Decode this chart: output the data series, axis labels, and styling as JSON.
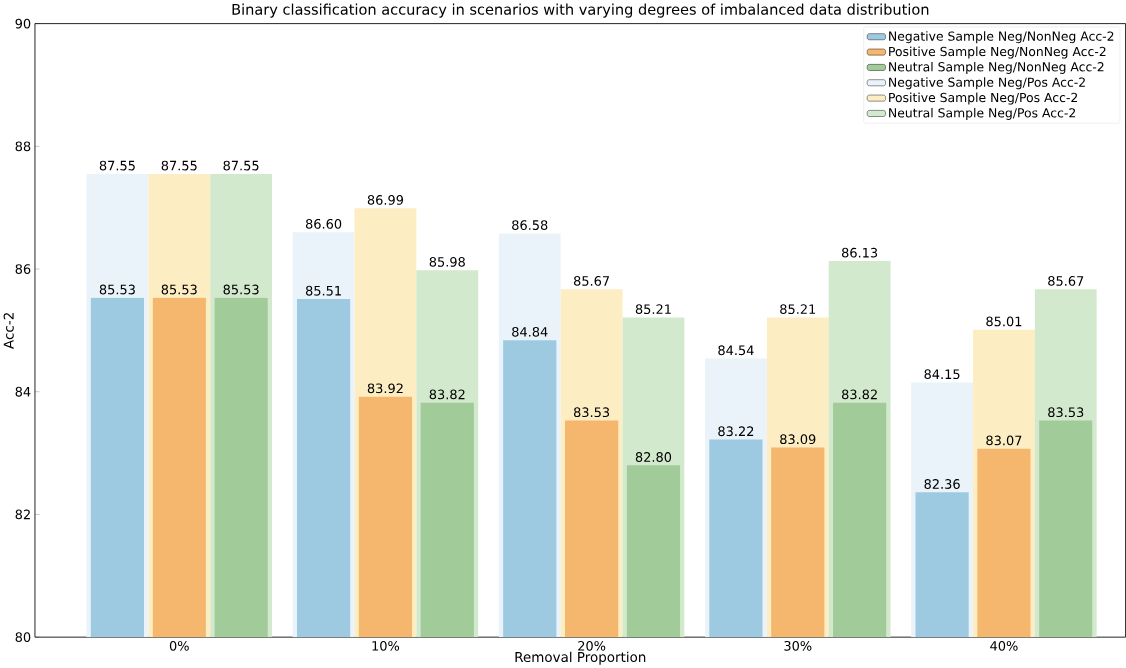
{
  "chart_data": {
    "type": "bar",
    "title": "Binary classification accuracy in scenarios with varying degrees of imbalanced data distribution",
    "xlabel": "Removal Proportion",
    "ylabel": "Acc-2",
    "categories": [
      "0%",
      "10%",
      "20%",
      "30%",
      "40%"
    ],
    "series": [
      {
        "name": "Negative Sample Neg/NonNeg Acc-2",
        "color": "#9ecae1",
        "values": [
          85.53,
          85.51,
          84.84,
          83.22,
          82.36
        ],
        "value_labels": [
          "85.53",
          "85.51",
          "84.84",
          "83.22",
          "82.36"
        ]
      },
      {
        "name": "Positive Sample Neg/NonNeg Acc-2",
        "color": "#f5b66e",
        "values": [
          85.53,
          83.92,
          83.53,
          83.09,
          83.07
        ],
        "value_labels": [
          "85.53",
          "83.92",
          "83.53",
          "83.09",
          "83.07"
        ]
      },
      {
        "name": "Neutral Sample Neg/NonNeg Acc-2",
        "color": "#a1cb98",
        "values": [
          85.53,
          83.82,
          82.8,
          83.82,
          83.53
        ],
        "value_labels": [
          "85.53",
          "83.82",
          "82.80",
          "83.82",
          "83.53"
        ]
      },
      {
        "name": "Negative Sample Neg/Pos Acc-2",
        "color": "#eaf3f9",
        "values": [
          87.55,
          86.6,
          86.58,
          84.54,
          84.15
        ],
        "value_labels": [
          "87.55",
          "86.60",
          "86.58",
          "84.54",
          "84.15"
        ]
      },
      {
        "name": "Positive Sample Neg/Pos Acc-2",
        "color": "#fcedc2",
        "values": [
          87.55,
          86.99,
          85.67,
          85.21,
          85.01
        ],
        "value_labels": [
          "87.55",
          "86.99",
          "85.67",
          "85.21",
          "85.01"
        ]
      },
      {
        "name": "Neutral Sample Neg/Pos Acc-2",
        "color": "#d3e9cd",
        "values": [
          87.55,
          85.98,
          85.21,
          86.13,
          85.67
        ],
        "value_labels": [
          "87.55",
          "85.98",
          "85.21",
          "86.13",
          "85.67"
        ]
      }
    ],
    "ylim": [
      80,
      90
    ],
    "yticks": [
      80,
      82,
      84,
      86,
      88,
      90
    ],
    "legend": "top right",
    "grid": false
  }
}
